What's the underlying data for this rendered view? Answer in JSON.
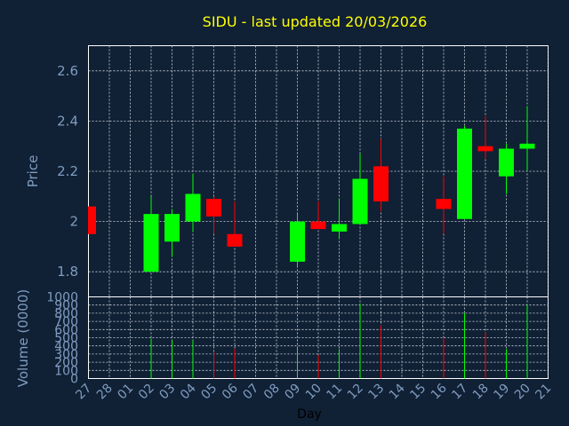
{
  "chart_data": [
    {
      "type": "candlestick",
      "title": "SIDU - last updated 20/03/2026",
      "ylabel": "Price",
      "ylim": [
        1.7,
        2.7
      ],
      "yticks": [
        1.8,
        2,
        2.2,
        2.4,
        2.6
      ],
      "ytick_labels": [
        "1.8",
        "2",
        "2.2",
        "2.4",
        "2.6"
      ],
      "grid": true,
      "colors": {
        "up": "#00ff00",
        "down": "#ff0000",
        "grid": "#cfd6de",
        "background": "#102035",
        "title": "#ffff00",
        "axis_text": "#7f9cbf"
      },
      "categories": [
        "27",
        "28",
        "01",
        "02",
        "03",
        "04",
        "05",
        "06",
        "07",
        "08",
        "09",
        "10",
        "11",
        "12",
        "13",
        "14",
        "15",
        "16",
        "17",
        "18",
        "19",
        "20",
        "21"
      ],
      "candles": [
        {
          "day": "27",
          "open": 2.06,
          "close": 1.95,
          "high": 2.06,
          "low": 1.95
        },
        {
          "day": "02",
          "open": 1.8,
          "close": 2.03,
          "high": 2.1,
          "low": 1.8
        },
        {
          "day": "03",
          "open": 1.92,
          "close": 2.03,
          "high": 2.05,
          "low": 1.86
        },
        {
          "day": "04",
          "open": 2.0,
          "close": 2.11,
          "high": 2.19,
          "low": 1.96
        },
        {
          "day": "05",
          "open": 2.09,
          "close": 2.02,
          "high": 2.1,
          "low": 1.95
        },
        {
          "day": "06",
          "open": 1.95,
          "close": 1.9,
          "high": 2.08,
          "low": 1.9
        },
        {
          "day": "09",
          "open": 1.84,
          "close": 2.0,
          "high": 2.03,
          "low": 1.82
        },
        {
          "day": "10",
          "open": 2.0,
          "close": 1.97,
          "high": 2.08,
          "low": 1.97
        },
        {
          "day": "11",
          "open": 1.96,
          "close": 1.99,
          "high": 2.09,
          "low": 1.93
        },
        {
          "day": "12",
          "open": 1.99,
          "close": 2.17,
          "high": 2.27,
          "low": 1.99
        },
        {
          "day": "13",
          "open": 2.22,
          "close": 2.08,
          "high": 2.33,
          "low": 2.04
        },
        {
          "day": "16",
          "open": 2.09,
          "close": 2.05,
          "high": 2.18,
          "low": 1.95
        },
        {
          "day": "17",
          "open": 2.01,
          "close": 2.37,
          "high": 2.38,
          "low": 2.01
        },
        {
          "day": "18",
          "open": 2.3,
          "close": 2.28,
          "high": 2.42,
          "low": 2.25
        },
        {
          "day": "19",
          "open": 2.18,
          "close": 2.29,
          "high": 2.31,
          "low": 2.11
        },
        {
          "day": "20",
          "open": 2.29,
          "close": 2.31,
          "high": 2.46,
          "low": 2.2
        }
      ]
    },
    {
      "type": "bar",
      "ylabel": "Volume (0000)",
      "xlabel": "Day",
      "ylim": [
        0,
        1000
      ],
      "yticks": [
        0,
        100,
        200,
        300,
        400,
        500,
        600,
        700,
        800,
        900,
        1000
      ],
      "ytick_labels": [
        "0",
        "100",
        "200",
        "300",
        "400",
        "500",
        "600",
        "700",
        "800",
        "900",
        "1000"
      ],
      "grid": true,
      "categories": [
        "27",
        "28",
        "01",
        "02",
        "03",
        "04",
        "05",
        "06",
        "07",
        "08",
        "09",
        "10",
        "11",
        "12",
        "13",
        "14",
        "15",
        "16",
        "17",
        "18",
        "19",
        "20",
        "21"
      ],
      "bars": [
        {
          "day": "02",
          "value": 490,
          "direction": "up"
        },
        {
          "day": "03",
          "value": 470,
          "direction": "up"
        },
        {
          "day": "04",
          "value": 470,
          "direction": "up"
        },
        {
          "day": "05",
          "value": 330,
          "direction": "down"
        },
        {
          "day": "06",
          "value": 360,
          "direction": "down"
        },
        {
          "day": "09",
          "value": 380,
          "direction": "up"
        },
        {
          "day": "10",
          "value": 290,
          "direction": "down"
        },
        {
          "day": "11",
          "value": 360,
          "direction": "up"
        },
        {
          "day": "12",
          "value": 920,
          "direction": "up"
        },
        {
          "day": "13",
          "value": 650,
          "direction": "down"
        },
        {
          "day": "16",
          "value": 490,
          "direction": "down"
        },
        {
          "day": "17",
          "value": 800,
          "direction": "up"
        },
        {
          "day": "18",
          "value": 560,
          "direction": "down"
        },
        {
          "day": "19",
          "value": 360,
          "direction": "up"
        },
        {
          "day": "20",
          "value": 900,
          "direction": "up"
        }
      ]
    }
  ]
}
